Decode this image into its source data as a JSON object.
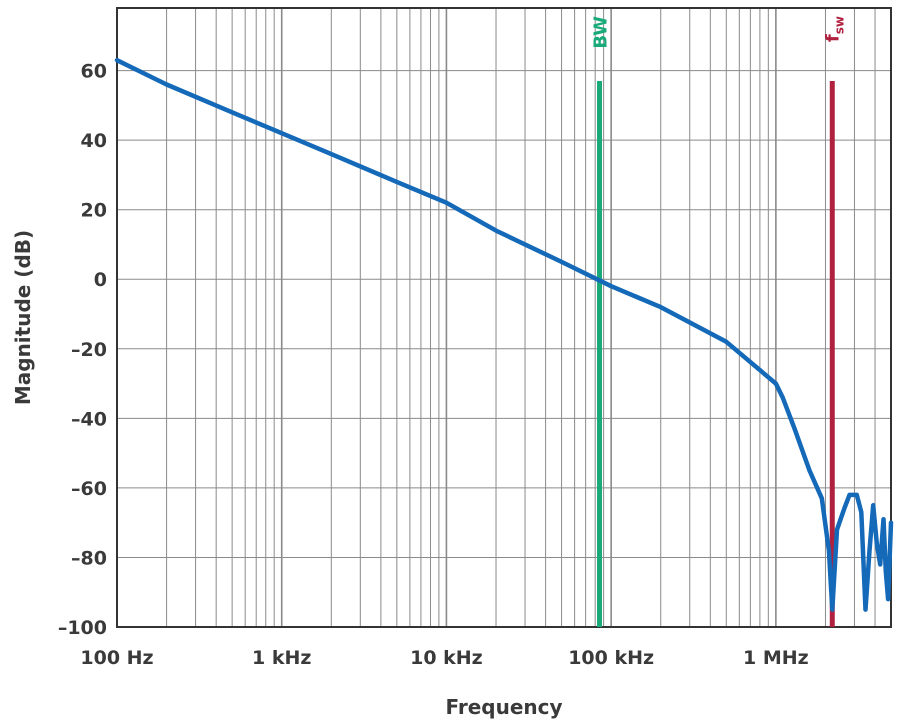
{
  "chart_data": {
    "type": "line",
    "title": "",
    "xlabel": "Frequency",
    "ylabel": "Magnitude (dB)",
    "x_scale": "log",
    "xlim": [
      100,
      5000000
    ],
    "ylim": [
      -100,
      78
    ],
    "x_ticks": [
      {
        "value": 100,
        "label": "100 Hz"
      },
      {
        "value": 1000,
        "label": "1 kHz"
      },
      {
        "value": 10000,
        "label": "10 kHz"
      },
      {
        "value": 100000,
        "label": "100 kHz"
      },
      {
        "value": 1000000,
        "label": "1 MHz"
      }
    ],
    "y_ticks": [
      {
        "value": 60,
        "label": "60"
      },
      {
        "value": 40,
        "label": "40"
      },
      {
        "value": 20,
        "label": "20"
      },
      {
        "value": 0,
        "label": "0"
      },
      {
        "value": -20,
        "label": "–20"
      },
      {
        "value": -40,
        "label": "–40"
      },
      {
        "value": -60,
        "label": "–60"
      },
      {
        "value": -80,
        "label": "–80"
      },
      {
        "value": -100,
        "label": "–100"
      }
    ],
    "grid": true,
    "markers": [
      {
        "label": "BW",
        "x": 85000,
        "y_top": 57,
        "color": "#1aaa7a"
      },
      {
        "label": "f",
        "subscript": "sw",
        "x": 2200000,
        "y_top": 57,
        "color": "#b0213f"
      }
    ],
    "series": [
      {
        "color": "#1469b8",
        "points": [
          [
            100,
            63
          ],
          [
            200,
            56
          ],
          [
            500,
            48
          ],
          [
            1000,
            42
          ],
          [
            2000,
            36
          ],
          [
            5000,
            28
          ],
          [
            10000,
            22
          ],
          [
            20000,
            14
          ],
          [
            50000,
            5
          ],
          [
            100000,
            -2
          ],
          [
            200000,
            -8
          ],
          [
            500000,
            -18
          ],
          [
            1000000,
            -30
          ],
          [
            1100000,
            -34
          ],
          [
            1300000,
            -43
          ],
          [
            1600000,
            -55
          ],
          [
            1900000,
            -63
          ],
          [
            2100000,
            -78
          ],
          [
            2200000,
            -95
          ],
          [
            2350000,
            -72
          ],
          [
            2600000,
            -66
          ],
          [
            2800000,
            -62
          ],
          [
            3100000,
            -62
          ],
          [
            3300000,
            -67
          ],
          [
            3500000,
            -95
          ],
          [
            3700000,
            -78
          ],
          [
            3900000,
            -65
          ],
          [
            4100000,
            -76
          ],
          [
            4300000,
            -82
          ],
          [
            4500000,
            -69
          ],
          [
            4650000,
            -84
          ],
          [
            4800000,
            -92
          ],
          [
            5000000,
            -70
          ]
        ]
      }
    ]
  }
}
